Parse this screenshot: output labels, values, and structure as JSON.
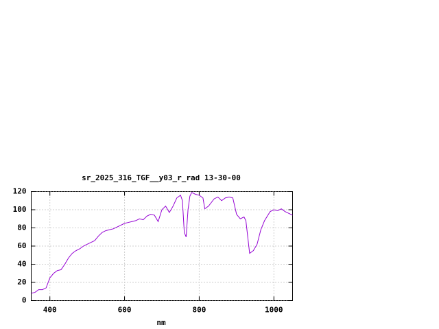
{
  "chart_data": {
    "type": "line",
    "title": "sr_2025_316_TGF__y03_r_rad 13-30-00",
    "x_label": "nm",
    "x": [
      350,
      360,
      370,
      380,
      390,
      400,
      410,
      420,
      430,
      440,
      450,
      460,
      470,
      480,
      490,
      500,
      510,
      520,
      530,
      540,
      550,
      560,
      570,
      580,
      590,
      600,
      610,
      620,
      630,
      640,
      650,
      660,
      670,
      680,
      690,
      700,
      710,
      720,
      730,
      740,
      750,
      755,
      760,
      765,
      770,
      775,
      780,
      790,
      800,
      810,
      815,
      825,
      840,
      850,
      860,
      870,
      880,
      890,
      900,
      910,
      920,
      925,
      935,
      945,
      955,
      965,
      975,
      990,
      1000,
      1010,
      1020,
      1030,
      1040,
      1050
    ],
    "series": [
      {
        "color": "#9400d3",
        "values": [
          8,
          9,
          12,
          12,
          14,
          25,
          30,
          33,
          34,
          40,
          47,
          52,
          55,
          57,
          60,
          62,
          64,
          66,
          71,
          75,
          77,
          78,
          79,
          81,
          83,
          85,
          86,
          87,
          88,
          90,
          89,
          93,
          95,
          94,
          87,
          100,
          104,
          97,
          104,
          113,
          116,
          110,
          75,
          70,
          100,
          115,
          119,
          117,
          116,
          113,
          101,
          104,
          112,
          114,
          110,
          113,
          114,
          113,
          95,
          90,
          92,
          88,
          52,
          55,
          62,
          78,
          88,
          98,
          100,
          99,
          101,
          98,
          96,
          94
        ]
      }
    ],
    "xlim": [
      350,
      1050
    ],
    "ylim": [
      0,
      120
    ],
    "xticks": [
      400,
      600,
      800,
      1000
    ],
    "yticks": [
      0,
      20,
      40,
      60,
      80,
      100,
      120
    ],
    "grid": true
  }
}
